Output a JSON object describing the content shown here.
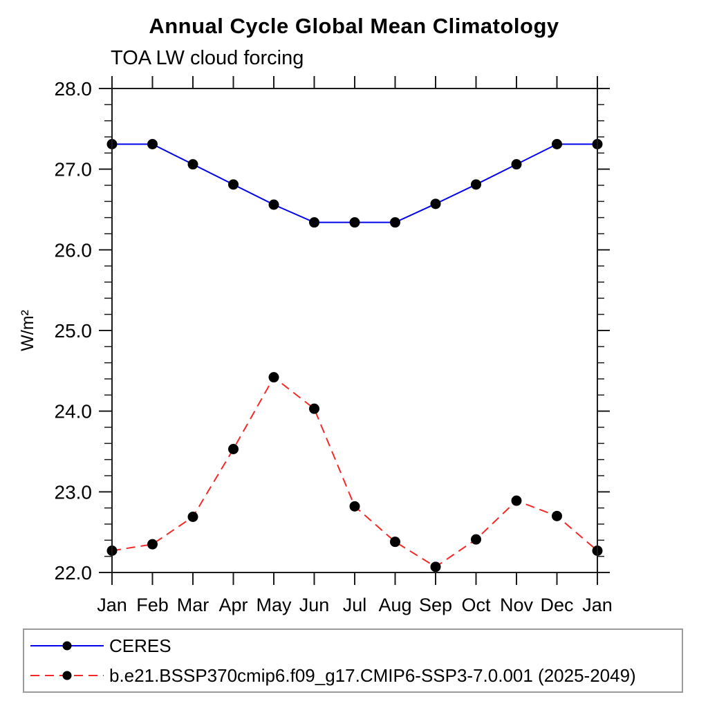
{
  "header": {
    "title": "Annual Cycle Global Mean Climatology",
    "subtitle": "TOA LW cloud forcing"
  },
  "chart_data": {
    "type": "line",
    "title": "Annual Cycle Global Mean Climatology",
    "subtitle": "TOA LW cloud forcing",
    "xlabel": "",
    "ylabel": "W/m²",
    "categories": [
      "Jan",
      "Feb",
      "Mar",
      "Apr",
      "May",
      "Jun",
      "Jul",
      "Aug",
      "Sep",
      "Oct",
      "Nov",
      "Dec",
      "Jan"
    ],
    "ylim": [
      22.0,
      28.0
    ],
    "y_major_step": 1.0,
    "y_minor_step": 0.2,
    "y_tick_labels": [
      "22.0",
      "23.0",
      "24.0",
      "25.0",
      "26.0",
      "27.0",
      "28.0"
    ],
    "grid": false,
    "legend_position": "bottom-left-box",
    "series": [
      {
        "name": "CERES",
        "color": "#0000ee",
        "style": "solid",
        "marker": "circle",
        "marker_color": "#000000",
        "values": [
          27.31,
          27.31,
          27.06,
          26.81,
          26.56,
          26.34,
          26.34,
          26.34,
          26.57,
          26.81,
          27.06,
          27.31,
          27.31
        ]
      },
      {
        "name": "b.e21.BSSP370cmip6.f09_g17.CMIP6-SSP3-7.0.001 (2025-2049)",
        "color": "#f52828",
        "style": "dashed",
        "marker": "circle",
        "marker_color": "#000000",
        "values": [
          22.27,
          22.35,
          22.69,
          23.53,
          24.42,
          24.03,
          22.82,
          22.38,
          22.07,
          22.41,
          22.89,
          22.7,
          22.27
        ]
      }
    ]
  },
  "colors": {
    "axis": "#1a1a1a",
    "legend_border": "#9a9a9a",
    "background": "#ffffff"
  }
}
